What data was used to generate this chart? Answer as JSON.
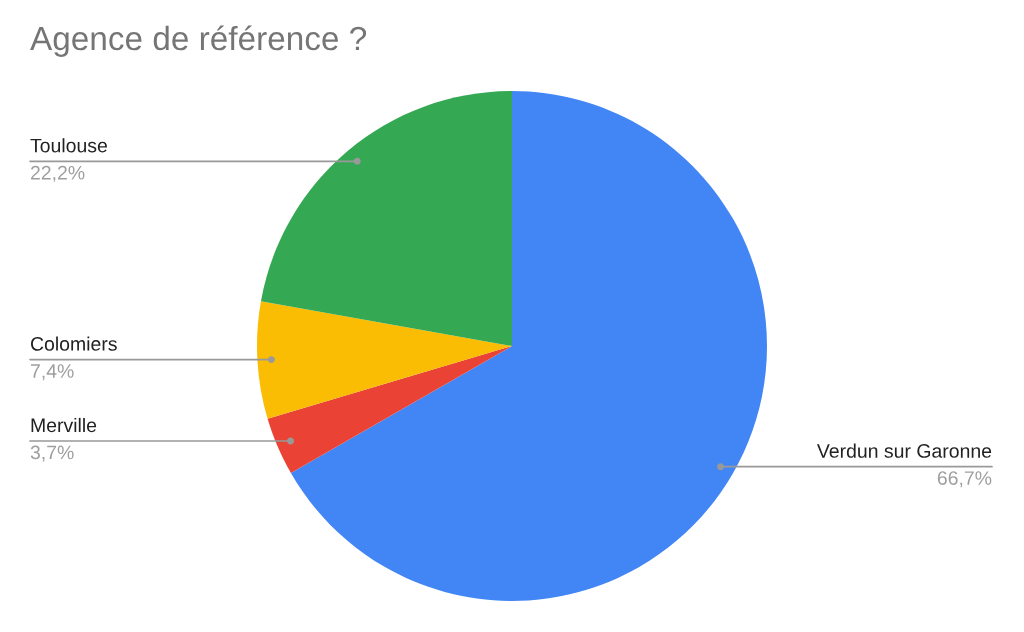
{
  "chart_data": {
    "type": "pie",
    "title": "Agence de référence ?",
    "categories": [
      "Verdun sur Garonne",
      "Merville",
      "Colomiers",
      "Toulouse"
    ],
    "values": [
      66.7,
      3.7,
      7.4,
      22.2
    ],
    "value_labels": [
      "66,7%",
      "3,7%",
      "7,4%",
      "22,2%"
    ],
    "colors": [
      "#4285f4",
      "#ea4335",
      "#fbbc04",
      "#34a853"
    ],
    "legend": false
  }
}
